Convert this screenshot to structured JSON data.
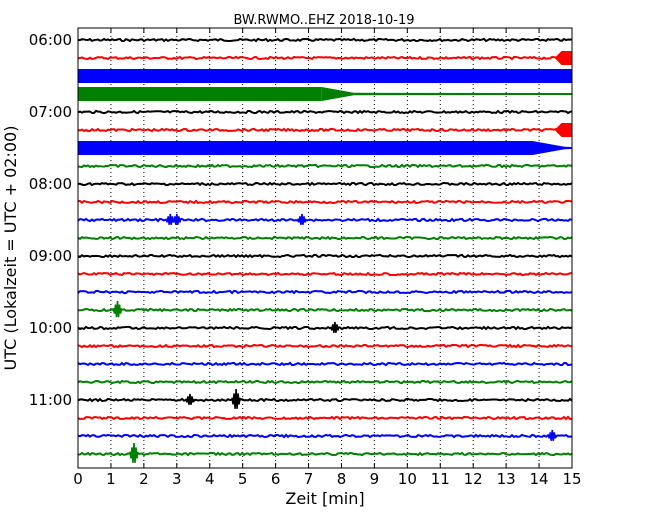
{
  "chart_data": {
    "type": "line",
    "title": "BW.RWMO..EHZ 2018-10-19",
    "xlabel": "Zeit  [min]",
    "ylabel": "UTC (Lokalzeit = UTC + 02:00)",
    "xlim": [
      0,
      15
    ],
    "x_ticks": [
      "0",
      "1",
      "2",
      "3",
      "4",
      "5",
      "6",
      "7",
      "8",
      "9",
      "10",
      "11",
      "12",
      "13",
      "14",
      "15"
    ],
    "y_ticks": [
      "06:00",
      "07:00",
      "08:00",
      "09:00",
      "10:00",
      "11:00"
    ],
    "grid": true,
    "trace_interval_minutes": 15,
    "trace_colors": [
      "#000000",
      "#ff0000",
      "#0000ff",
      "#008000"
    ],
    "traces": [
      {
        "start": "06:00",
        "color": "#000000",
        "amplitude": "low"
      },
      {
        "start": "06:15",
        "color": "#ff0000",
        "amplitude": "low",
        "burst_from_min": 14.5
      },
      {
        "start": "06:30",
        "color": "#0000ff",
        "amplitude": "saturated"
      },
      {
        "start": "06:45",
        "color": "#008000",
        "amplitude": "high",
        "decay_min": 7.4
      },
      {
        "start": "07:00",
        "color": "#000000",
        "amplitude": "low"
      },
      {
        "start": "07:15",
        "color": "#ff0000",
        "amplitude": "low",
        "burst_from_min": 14.5
      },
      {
        "start": "07:30",
        "color": "#0000ff",
        "amplitude": "high",
        "decay_min": 13.8
      },
      {
        "start": "07:45",
        "color": "#008000",
        "amplitude": "low"
      },
      {
        "start": "08:00",
        "color": "#000000",
        "amplitude": "low"
      },
      {
        "start": "08:15",
        "color": "#ff0000",
        "amplitude": "low"
      },
      {
        "start": "08:30",
        "color": "#0000ff",
        "amplitude": "low",
        "events_min": [
          2.8,
          3.0,
          6.8
        ]
      },
      {
        "start": "08:45",
        "color": "#008000",
        "amplitude": "low"
      },
      {
        "start": "09:00",
        "color": "#000000",
        "amplitude": "low"
      },
      {
        "start": "09:15",
        "color": "#ff0000",
        "amplitude": "low"
      },
      {
        "start": "09:30",
        "color": "#0000ff",
        "amplitude": "low"
      },
      {
        "start": "09:45",
        "color": "#008000",
        "amplitude": "low",
        "events_min": [
          1.2
        ]
      },
      {
        "start": "10:00",
        "color": "#000000",
        "amplitude": "low",
        "events_min": [
          7.8
        ]
      },
      {
        "start": "10:15",
        "color": "#ff0000",
        "amplitude": "low"
      },
      {
        "start": "10:30",
        "color": "#0000ff",
        "amplitude": "low"
      },
      {
        "start": "10:45",
        "color": "#008000",
        "amplitude": "low"
      },
      {
        "start": "11:00",
        "color": "#000000",
        "amplitude": "low",
        "events_min": [
          3.4,
          4.8
        ]
      },
      {
        "start": "11:15",
        "color": "#ff0000",
        "amplitude": "low"
      },
      {
        "start": "11:30",
        "color": "#0000ff",
        "amplitude": "low",
        "events_min": [
          14.4
        ]
      },
      {
        "start": "11:45",
        "color": "#008000",
        "amplitude": "low",
        "events_min": [
          1.7
        ]
      }
    ]
  }
}
